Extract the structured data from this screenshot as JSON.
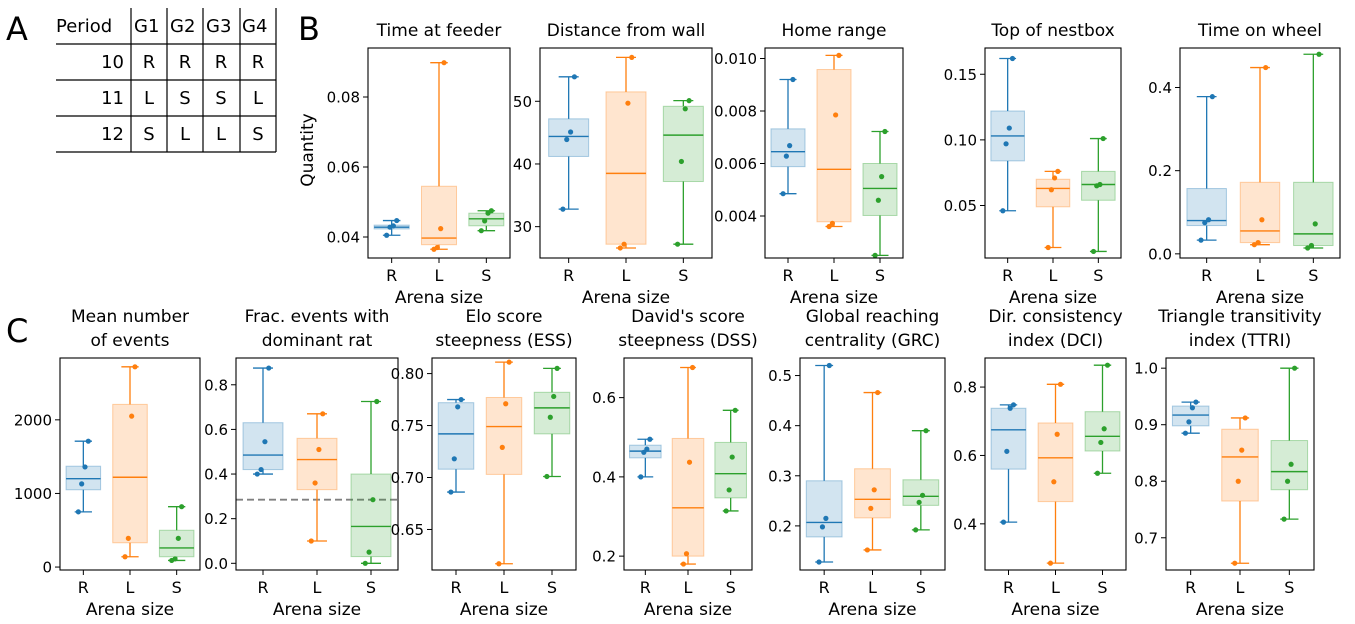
{
  "panel_letters": [
    "A",
    "B",
    "C"
  ],
  "schedule_table": {
    "headers": [
      "Period",
      "G1",
      "G2",
      "G3",
      "G4"
    ],
    "rows": [
      [
        "10",
        "R",
        "R",
        "R",
        "R"
      ],
      [
        "11",
        "L",
        "S",
        "S",
        "L"
      ],
      [
        "12",
        "S",
        "L",
        "L",
        "S"
      ]
    ]
  },
  "colors": {
    "R": "#1f77b4",
    "L": "#ff7f0e",
    "S": "#2ca02c"
  },
  "chart_data": [
    {
      "type": "box",
      "title": [
        "Time at feeder"
      ],
      "xlabel": "Arena size",
      "ylabel": "Quantity",
      "categories": [
        "R",
        "L",
        "S"
      ],
      "ylim": [
        0.034,
        0.094
      ],
      "yticks": [
        0.04,
        0.06,
        0.08
      ],
      "ytick_labels": [
        "0.04",
        "0.06",
        "0.08"
      ],
      "boxes": [
        {
          "whislo": 0.0405,
          "q1": 0.0423,
          "med": 0.0428,
          "q3": 0.0434,
          "whishi": 0.0447
        },
        {
          "whislo": 0.0365,
          "q1": 0.0378,
          "med": 0.0397,
          "q3": 0.0545,
          "whishi": 0.0898
        },
        {
          "whislo": 0.0418,
          "q1": 0.0432,
          "med": 0.0452,
          "q3": 0.0468,
          "whishi": 0.0475
        }
      ],
      "points": [
        [
          0.0405,
          0.0428,
          0.0432,
          0.0447
        ],
        [
          0.0365,
          0.037,
          0.0424,
          0.0898
        ],
        [
          0.0418,
          0.0446,
          0.0468,
          0.0475
        ]
      ]
    },
    {
      "type": "box",
      "title": [
        "Distance from wall"
      ],
      "xlabel": "Arena size",
      "ylabel": "",
      "categories": [
        "R",
        "L",
        "S"
      ],
      "ylim": [
        25,
        58.5
      ],
      "yticks": [
        30,
        40,
        50
      ],
      "ytick_labels": [
        "30",
        "40",
        "50"
      ],
      "boxes": [
        {
          "whislo": 32.8,
          "q1": 41.2,
          "med": 44.4,
          "q3": 47.2,
          "whishi": 53.9
        },
        {
          "whislo": 26.6,
          "q1": 27.2,
          "med": 38.5,
          "q3": 51.5,
          "whishi": 57.0
        },
        {
          "whislo": 27.2,
          "q1": 37.2,
          "med": 44.6,
          "q3": 49.2,
          "whishi": 50.1
        }
      ],
      "points": [
        [
          32.8,
          43.9,
          45.1,
          53.9
        ],
        [
          26.6,
          27.2,
          49.7,
          57.0
        ],
        [
          27.2,
          40.4,
          48.8,
          50.1
        ]
      ]
    },
    {
      "type": "box",
      "title": [
        "Home range"
      ],
      "xlabel": "Arena size",
      "ylabel": "",
      "categories": [
        "R",
        "L",
        "S"
      ],
      "ylim": [
        0.0024,
        0.0104
      ],
      "yticks": [
        0.004,
        0.006,
        0.008,
        0.01
      ],
      "ytick_labels": [
        "0.004",
        "0.006",
        "0.008",
        "0.010"
      ],
      "boxes": [
        {
          "whislo": 0.00485,
          "q1": 0.00588,
          "med": 0.00645,
          "q3": 0.00732,
          "whishi": 0.0092
        },
        {
          "whislo": 0.0036,
          "q1": 0.00378,
          "med": 0.00578,
          "q3": 0.00958,
          "whishi": 0.01012
        },
        {
          "whislo": 0.0025,
          "q1": 0.00402,
          "med": 0.00505,
          "q3": 0.006,
          "whishi": 0.00722
        }
      ],
      "points": [
        [
          0.00485,
          0.00628,
          0.00668,
          0.0092
        ],
        [
          0.0036,
          0.00372,
          0.00785,
          0.01012
        ],
        [
          0.0025,
          0.0046,
          0.0055,
          0.00722
        ]
      ]
    },
    {
      "type": "box",
      "title": [
        "Top of nestbox"
      ],
      "xlabel": "Arena size",
      "ylabel": "",
      "categories": [
        "R",
        "L",
        "S"
      ],
      "ylim": [
        0.01,
        0.17
      ],
      "yticks": [
        0.05,
        0.1,
        0.15
      ],
      "ytick_labels": [
        "0.05",
        "0.10",
        "0.15"
      ],
      "boxes": [
        {
          "whislo": 0.046,
          "q1": 0.084,
          "med": 0.103,
          "q3": 0.122,
          "whishi": 0.162
        },
        {
          "whislo": 0.018,
          "q1": 0.049,
          "med": 0.063,
          "q3": 0.07,
          "whishi": 0.076
        },
        {
          "whislo": 0.015,
          "q1": 0.054,
          "med": 0.066,
          "q3": 0.076,
          "whishi": 0.101
        }
      ],
      "points": [
        [
          0.046,
          0.097,
          0.109,
          0.162
        ],
        [
          0.018,
          0.062,
          0.071,
          0.076
        ],
        [
          0.015,
          0.065,
          0.066,
          0.101
        ]
      ]
    },
    {
      "type": "box",
      "title": [
        "Time on wheel"
      ],
      "xlabel": "Arena size",
      "ylabel": "",
      "categories": [
        "R",
        "L",
        "S"
      ],
      "ylim": [
        -0.01,
        0.495
      ],
      "yticks": [
        0.0,
        0.2,
        0.4
      ],
      "ytick_labels": [
        "0.0",
        "0.2",
        "0.4"
      ],
      "boxes": [
        {
          "whislo": 0.033,
          "q1": 0.068,
          "med": 0.08,
          "q3": 0.157,
          "whishi": 0.378
        },
        {
          "whislo": 0.022,
          "q1": 0.027,
          "med": 0.055,
          "q3": 0.172,
          "whishi": 0.448
        },
        {
          "whislo": 0.014,
          "q1": 0.02,
          "med": 0.048,
          "q3": 0.172,
          "whishi": 0.48
        }
      ],
      "points": [
        [
          0.033,
          0.075,
          0.082,
          0.378
        ],
        [
          0.022,
          0.027,
          0.082,
          0.448
        ],
        [
          0.014,
          0.02,
          0.072,
          0.48
        ]
      ]
    },
    {
      "type": "box",
      "title": [
        "Mean number",
        "of events"
      ],
      "xlabel": "Arena size",
      "ylabel": "",
      "categories": [
        "R",
        "L",
        "S"
      ],
      "ylim": [
        -40,
        2840
      ],
      "yticks": [
        0,
        1000,
        2000
      ],
      "ytick_labels": [
        "0",
        "1000",
        "2000"
      ],
      "boxes": [
        {
          "whislo": 750,
          "q1": 1050,
          "med": 1200,
          "q3": 1370,
          "whishi": 1710
        },
        {
          "whislo": 140,
          "q1": 330,
          "med": 1220,
          "q3": 2210,
          "whishi": 2720
        },
        {
          "whislo": 90,
          "q1": 140,
          "med": 260,
          "q3": 500,
          "whishi": 820
        }
      ],
      "points": [
        [
          750,
          1130,
          1360,
          1710
        ],
        [
          140,
          390,
          2050,
          2720
        ],
        [
          90,
          110,
          390,
          820
        ]
      ]
    },
    {
      "type": "box",
      "title": [
        "Frac. events with",
        "dominant rat"
      ],
      "xlabel": "Arena size",
      "ylabel": "",
      "categories": [
        "R",
        "L",
        "S"
      ],
      "ylim": [
        -0.03,
        0.92
      ],
      "yticks": [
        0.0,
        0.2,
        0.4,
        0.6,
        0.8
      ],
      "ytick_labels": [
        "0.0",
        "0.2",
        "0.4",
        "0.6",
        "0.8"
      ],
      "reference_line": 0.285,
      "boxes": [
        {
          "whislo": 0.4,
          "q1": 0.42,
          "med": 0.485,
          "q3": 0.63,
          "whishi": 0.875
        },
        {
          "whislo": 0.1,
          "q1": 0.33,
          "med": 0.465,
          "q3": 0.56,
          "whishi": 0.67
        },
        {
          "whislo": 0.0,
          "q1": 0.03,
          "med": 0.165,
          "q3": 0.4,
          "whishi": 0.725
        }
      ],
      "points": [
        [
          0.4,
          0.42,
          0.545,
          0.875
        ],
        [
          0.1,
          0.36,
          0.51,
          0.67
        ],
        [
          0.0,
          0.05,
          0.285,
          0.725
        ]
      ]
    },
    {
      "type": "box",
      "title": [
        "Elo score",
        "steepness (ESS)"
      ],
      "xlabel": "Arena size",
      "ylabel": "",
      "categories": [
        "R",
        "L",
        "S"
      ],
      "ylim": [
        0.611,
        0.815
      ],
      "yticks": [
        0.65,
        0.7,
        0.75,
        0.8
      ],
      "ytick_labels": [
        "0.65",
        "0.70",
        "0.75",
        "0.80"
      ],
      "boxes": [
        {
          "whislo": 0.686,
          "q1": 0.708,
          "med": 0.742,
          "q3": 0.772,
          "whishi": 0.775
        },
        {
          "whislo": 0.617,
          "q1": 0.703,
          "med": 0.749,
          "q3": 0.777,
          "whishi": 0.811
        },
        {
          "whislo": 0.701,
          "q1": 0.742,
          "med": 0.767,
          "q3": 0.782,
          "whishi": 0.805
        }
      ],
      "points": [
        [
          0.686,
          0.718,
          0.768,
          0.775
        ],
        [
          0.617,
          0.729,
          0.771,
          0.811
        ],
        [
          0.701,
          0.758,
          0.778,
          0.805
        ]
      ]
    },
    {
      "type": "box",
      "title": [
        "David's score",
        "steepness (DSS)"
      ],
      "xlabel": "Arena size",
      "ylabel": "",
      "categories": [
        "R",
        "L",
        "S"
      ],
      "ylim": [
        0.165,
        0.7
      ],
      "yticks": [
        0.2,
        0.4,
        0.6
      ],
      "ytick_labels": [
        "0.2",
        "0.4",
        "0.6"
      ],
      "boxes": [
        {
          "whislo": 0.4,
          "q1": 0.448,
          "med": 0.465,
          "q3": 0.48,
          "whishi": 0.495
        },
        {
          "whislo": 0.18,
          "q1": 0.2,
          "med": 0.322,
          "q3": 0.497,
          "whishi": 0.676
        },
        {
          "whislo": 0.314,
          "q1": 0.347,
          "med": 0.408,
          "q3": 0.487,
          "whishi": 0.568
        }
      ],
      "points": [
        [
          0.4,
          0.462,
          0.47,
          0.495
        ],
        [
          0.18,
          0.206,
          0.437,
          0.676
        ],
        [
          0.314,
          0.367,
          0.45,
          0.568
        ]
      ]
    },
    {
      "type": "box",
      "title": [
        "Global reaching",
        "centrality (GRC)"
      ],
      "xlabel": "Arena size",
      "ylabel": "",
      "categories": [
        "R",
        "L",
        "S"
      ],
      "ylim": [
        0.112,
        0.535
      ],
      "yticks": [
        0.2,
        0.3,
        0.4,
        0.5
      ],
      "ytick_labels": [
        "0.2",
        "0.3",
        "0.4",
        "0.5"
      ],
      "boxes": [
        {
          "whislo": 0.128,
          "q1": 0.178,
          "med": 0.207,
          "q3": 0.29,
          "whishi": 0.52
        },
        {
          "whislo": 0.152,
          "q1": 0.216,
          "med": 0.253,
          "q3": 0.314,
          "whishi": 0.466
        },
        {
          "whislo": 0.192,
          "q1": 0.241,
          "med": 0.259,
          "q3": 0.292,
          "whishi": 0.39
        }
      ],
      "points": [
        [
          0.128,
          0.198,
          0.215,
          0.52
        ],
        [
          0.152,
          0.235,
          0.272,
          0.466
        ],
        [
          0.192,
          0.247,
          0.261,
          0.39
        ]
      ]
    },
    {
      "type": "box",
      "title": [
        "Dir. consistency",
        "index (DCI)"
      ],
      "xlabel": "Arena size",
      "ylabel": "",
      "categories": [
        "R",
        "L",
        "S"
      ],
      "ylim": [
        0.265,
        0.885
      ],
      "yticks": [
        0.4,
        0.6,
        0.8
      ],
      "ytick_labels": [
        "0.4",
        "0.6",
        "0.8"
      ],
      "boxes": [
        {
          "whislo": 0.405,
          "q1": 0.56,
          "med": 0.675,
          "q3": 0.738,
          "whishi": 0.748
        },
        {
          "whislo": 0.285,
          "q1": 0.465,
          "med": 0.593,
          "q3": 0.695,
          "whishi": 0.808
        },
        {
          "whislo": 0.548,
          "q1": 0.613,
          "med": 0.656,
          "q3": 0.728,
          "whishi": 0.864
        }
      ],
      "points": [
        [
          0.405,
          0.612,
          0.738,
          0.748
        ],
        [
          0.285,
          0.523,
          0.662,
          0.808
        ],
        [
          0.548,
          0.638,
          0.678,
          0.864
        ]
      ]
    },
    {
      "type": "box",
      "title": [
        "Triangle transitivity",
        "index (TTRI)"
      ],
      "xlabel": "Arena size",
      "ylabel": "",
      "categories": [
        "R",
        "L",
        "S"
      ],
      "ylim": [
        0.643,
        1.018
      ],
      "yticks": [
        0.7,
        0.8,
        0.9,
        1.0
      ],
      "ytick_labels": [
        "0.7",
        "0.8",
        "0.9",
        "1.0"
      ],
      "boxes": [
        {
          "whislo": 0.885,
          "q1": 0.898,
          "med": 0.917,
          "q3": 0.933,
          "whishi": 0.94
        },
        {
          "whislo": 0.655,
          "q1": 0.765,
          "med": 0.843,
          "q3": 0.892,
          "whishi": 0.912
        },
        {
          "whislo": 0.733,
          "q1": 0.785,
          "med": 0.817,
          "q3": 0.872,
          "whishi": 1.0
        }
      ],
      "points": [
        [
          0.885,
          0.905,
          0.93,
          0.94
        ],
        [
          0.655,
          0.8,
          0.855,
          0.912
        ],
        [
          0.733,
          0.8,
          0.83,
          1.0
        ]
      ]
    }
  ]
}
